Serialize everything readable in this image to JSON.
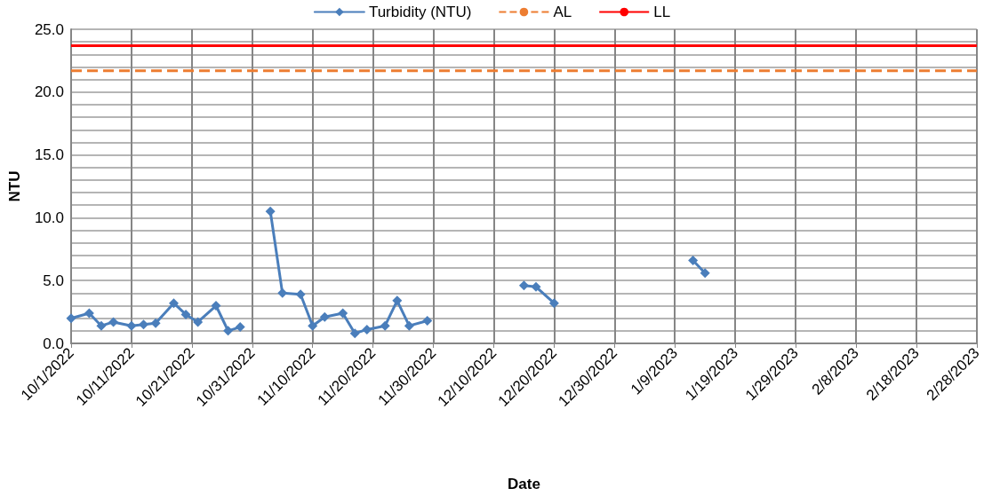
{
  "chart_data": {
    "type": "line",
    "xlabel": "Date",
    "ylabel": "NTU",
    "x": [
      "2022-10-01",
      "2022-10-04",
      "2022-10-06",
      "2022-10-08",
      "2022-10-11",
      "2022-10-13",
      "2022-10-15",
      "2022-10-18",
      "2022-10-20",
      "2022-10-22",
      "2022-10-25",
      "2022-10-27",
      "2022-10-29",
      "2022-10-31",
      "2022-11-03",
      "2022-11-05",
      "2022-11-08",
      "2022-11-10",
      "2022-11-12",
      "2022-11-15",
      "2022-11-17",
      "2022-11-19",
      "2022-11-22",
      "2022-11-24",
      "2022-11-26",
      "2022-11-29",
      "2022-12-05",
      "2022-12-15",
      "2022-12-17",
      "2022-12-20",
      "2023-01-01",
      "2023-01-12",
      "2023-01-14"
    ],
    "series": [
      {
        "name": "Turbidity (NTU)",
        "color": "#4a7ebb",
        "values": [
          2.0,
          2.4,
          1.4,
          1.7,
          1.4,
          1.5,
          1.6,
          3.2,
          2.3,
          1.7,
          3.0,
          1.0,
          1.3,
          null,
          10.5,
          4.0,
          3.9,
          1.4,
          2.1,
          2.4,
          0.8,
          1.1,
          1.4,
          3.4,
          1.4,
          1.8,
          null,
          4.6,
          4.5,
          3.2,
          null,
          6.6,
          5.6
        ]
      }
    ],
    "ref_lines": [
      {
        "axis": "y",
        "value": 21.7,
        "label": "AL",
        "color": "#ed7d31",
        "line_style": "dashed"
      },
      {
        "axis": "y",
        "value": 23.7,
        "label": "LL",
        "color": "#ff0000",
        "line_style": "solid"
      }
    ],
    "xlim": [
      "2022-10-01",
      "2023-02-28"
    ],
    "xticks": [
      {
        "value": "2022-10-01",
        "label": "10/1/2022"
      },
      {
        "value": "2022-10-11",
        "label": "10/11/2022"
      },
      {
        "value": "2022-10-21",
        "label": "10/21/2022"
      },
      {
        "value": "2022-10-31",
        "label": "10/31/2022"
      },
      {
        "value": "2022-11-10",
        "label": "11/10/2022"
      },
      {
        "value": "2022-11-20",
        "label": "11/20/2022"
      },
      {
        "value": "2022-11-30",
        "label": "11/30/2022"
      },
      {
        "value": "2022-12-10",
        "label": "12/10/2022"
      },
      {
        "value": "2022-12-20",
        "label": "12/20/2022"
      },
      {
        "value": "2022-12-30",
        "label": "12/30/2022"
      },
      {
        "value": "2023-01-09",
        "label": "1/9/2023"
      },
      {
        "value": "2023-01-19",
        "label": "1/19/2023"
      },
      {
        "value": "2023-01-29",
        "label": "1/29/2023"
      },
      {
        "value": "2023-02-08",
        "label": "2/8/2023"
      },
      {
        "value": "2023-02-18",
        "label": "2/18/2023"
      },
      {
        "value": "2023-02-28",
        "label": "2/28/2023"
      }
    ],
    "ylim": [
      0,
      25
    ],
    "yticks": [
      {
        "value": 0,
        "label": "0.0"
      },
      {
        "value": 1,
        "label": null
      },
      {
        "value": 2,
        "label": null
      },
      {
        "value": 3,
        "label": null
      },
      {
        "value": 4,
        "label": null
      },
      {
        "value": 5,
        "label": "5.0"
      },
      {
        "value": 6,
        "label": null
      },
      {
        "value": 7,
        "label": null
      },
      {
        "value": 8,
        "label": null
      },
      {
        "value": 9,
        "label": null
      },
      {
        "value": 10,
        "label": "10.0"
      },
      {
        "value": 11,
        "label": null
      },
      {
        "value": 12,
        "label": null
      },
      {
        "value": 13,
        "label": null
      },
      {
        "value": 14,
        "label": null
      },
      {
        "value": 15,
        "label": "15.0"
      },
      {
        "value": 16,
        "label": null
      },
      {
        "value": 17,
        "label": null
      },
      {
        "value": 18,
        "label": null
      },
      {
        "value": 19,
        "label": null
      },
      {
        "value": 20,
        "label": "20.0"
      },
      {
        "value": 21,
        "label": null
      },
      {
        "value": 22,
        "label": null
      },
      {
        "value": 23,
        "label": null
      },
      {
        "value": 24,
        "label": null
      },
      {
        "value": 25,
        "label": "25.0"
      }
    ],
    "grid": true,
    "legend": "top",
    "marker": "diamond",
    "line_style": "solid"
  }
}
